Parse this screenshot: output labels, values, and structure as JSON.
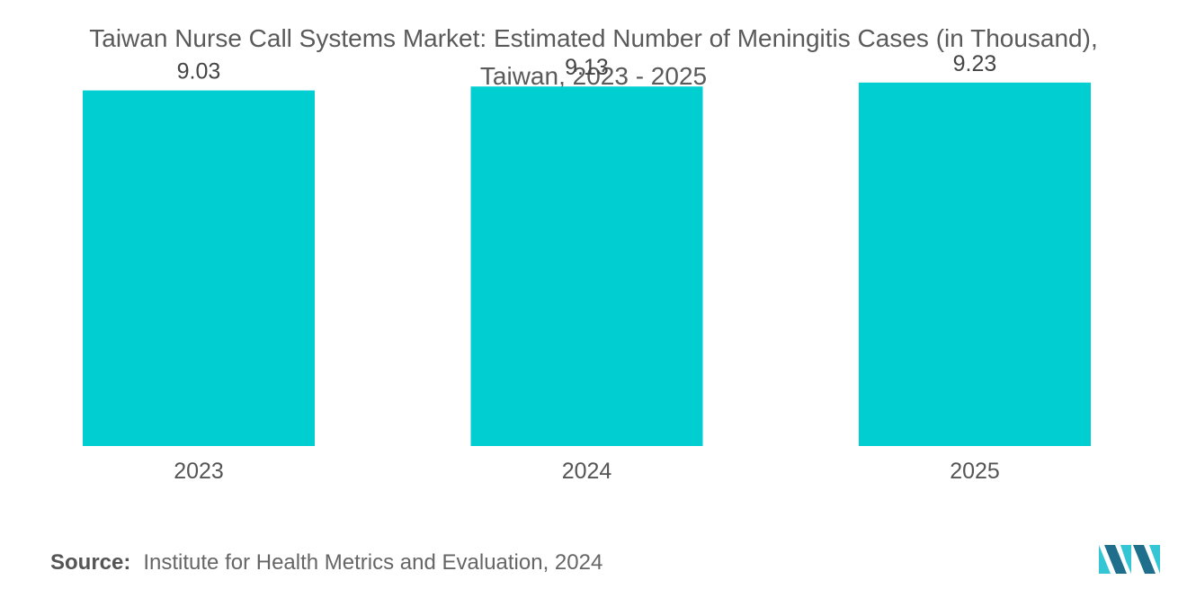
{
  "colors": {
    "bar": "#00CED1",
    "text": "#555555",
    "logo_dark": "#1f6e8c",
    "logo_light": "#35c6d6"
  },
  "chart_data": {
    "type": "bar",
    "title": "Taiwan Nurse Call Systems Market: Estimated Number of Meningitis Cases (in Thousand), Taiwan, 2023 - 2025",
    "title_lines": [
      "Taiwan Nurse Call Systems Market: Estimated Number of Meningitis Cases (in Thousand),",
      "Taiwan, 2023 - 2025"
    ],
    "categories": [
      "2023",
      "2024",
      "2025"
    ],
    "values": [
      9.03,
      9.13,
      9.23
    ],
    "data_labels": [
      "9.03",
      "9.13",
      "9.23"
    ],
    "xlabel": "",
    "ylabel": "",
    "ylim": [
      0,
      9.5
    ],
    "grid": false,
    "legend": "none"
  },
  "source": {
    "label": "Source:",
    "text": "Institute for Health Metrics and Evaluation, 2024"
  },
  "logo": {
    "icon": "mordor-intelligence-logo"
  }
}
